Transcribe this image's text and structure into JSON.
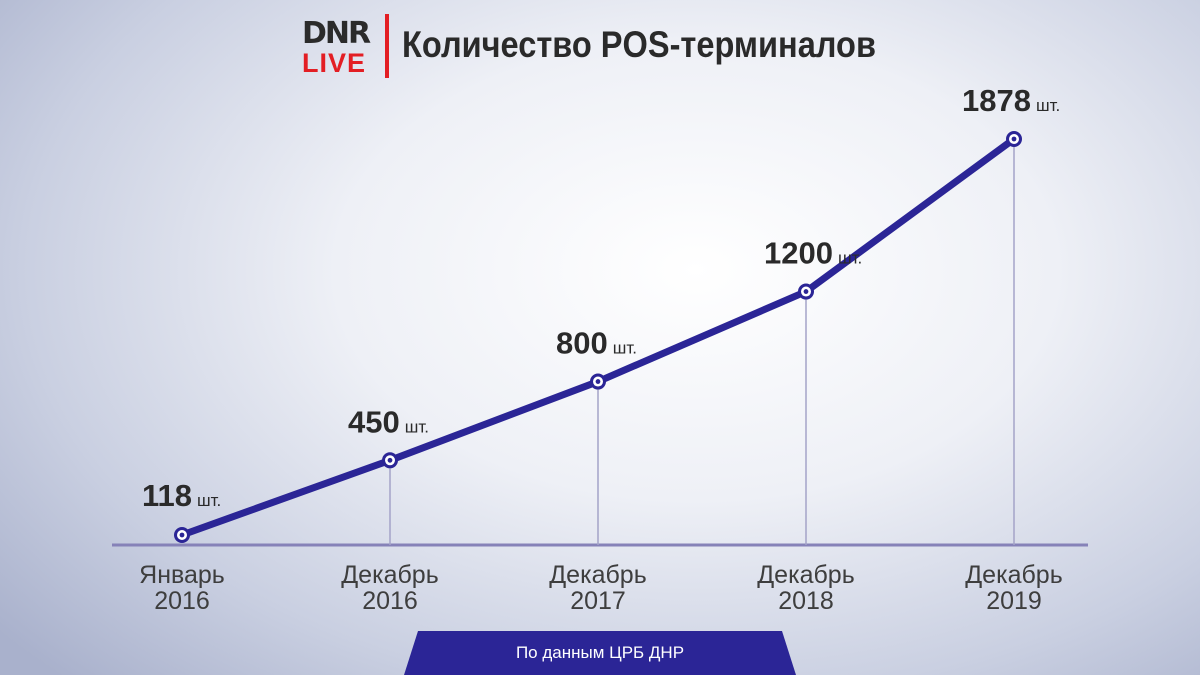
{
  "header": {
    "logo_top": "DNR",
    "logo_bottom": "LIVE",
    "title": "Количество POS-терминалов"
  },
  "colors": {
    "line": "#2b2596",
    "marker_fill": "#ffffff",
    "guide": "#a4a3c8",
    "axis": "#8682b8",
    "brand_red": "#e31e24",
    "label_dark": "#2a2a2a",
    "tick_label": "#3e3e3e"
  },
  "chart_data": {
    "type": "line",
    "title": "Количество POS-терминалов",
    "xlabel": "",
    "ylabel": "",
    "categories": [
      "Январь 2016",
      "Декабрь 2016",
      "Декабрь 2017",
      "Декабрь 2018",
      "Декабрь 2019"
    ],
    "tick_labels": [
      [
        "Январь",
        "2016"
      ],
      [
        "Декабрь",
        "2016"
      ],
      [
        "Декабрь",
        "2017"
      ],
      [
        "Декабрь",
        "2018"
      ],
      [
        "Декабрь",
        "2019"
      ]
    ],
    "values": [
      118,
      450,
      800,
      1200,
      1878
    ],
    "value_labels": [
      "118",
      "450",
      "800",
      "1200",
      "1878"
    ],
    "unit": "шт.",
    "grid": false,
    "legend": "none"
  },
  "footer": {
    "source": "По данным ЦРБ ДНР"
  }
}
